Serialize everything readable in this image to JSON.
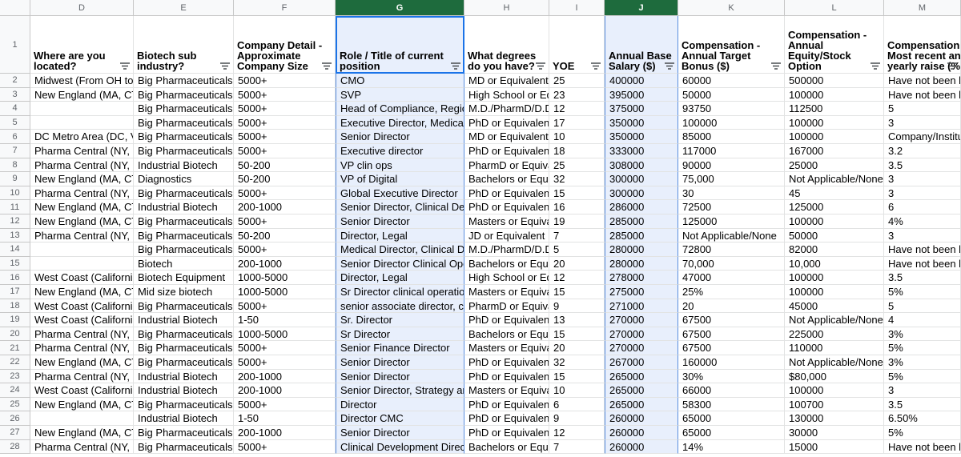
{
  "columns": [
    "D",
    "E",
    "F",
    "G",
    "H",
    "I",
    "J",
    "K",
    "L",
    "M"
  ],
  "row_numbers": [
    "1",
    "2",
    "3",
    "4",
    "5",
    "6",
    "7",
    "8",
    "9",
    "10",
    "11",
    "12",
    "13",
    "14",
    "15",
    "16",
    "17",
    "18",
    "19",
    "20",
    "21",
    "22",
    "23",
    "24",
    "25",
    "26",
    "27",
    "28"
  ],
  "headers": [
    [
      "Where are you",
      "located?"
    ],
    [
      "Biotech sub",
      "industry?"
    ],
    [
      "Company Detail -",
      "Approximate",
      "Company Size"
    ],
    [
      "Role / Title of current",
      "position"
    ],
    [
      "What degrees",
      "do you have?"
    ],
    [
      "YOE"
    ],
    [
      "Annual Base",
      "Salary ($)"
    ],
    [
      "Compensation -",
      "Annual Target",
      "Bonus ($)"
    ],
    [
      "Compensation -",
      "Annual",
      "Equity/Stock",
      "Option"
    ],
    [
      "Compensation",
      "Most recent an",
      "yearly raise (%)"
    ]
  ],
  "rows": [
    [
      "Midwest (From OH to KS",
      "Big Pharmaceuticals",
      "5000+",
      "CMO",
      "MD or Equivalent",
      "25",
      "400000",
      "60000",
      "500000",
      "Have not been lo"
    ],
    [
      "New England (MA, CT, R",
      "Big Pharmaceuticals",
      "5000+",
      "SVP",
      "High School or Equiv",
      "23",
      "395000",
      "50000",
      "100000",
      "Have not been lo"
    ],
    [
      null,
      "Big Pharmaceuticals",
      "5000+",
      "Head of Compliance, Regional",
      "M.D./PharmD/D.D.S.",
      "12",
      "375000",
      "93750",
      "112500",
      "5"
    ],
    [
      null,
      "Big Pharmaceuticals",
      "5000+",
      "Executive Director, Medical Affai",
      "PhD or Equivalent",
      "17",
      "350000",
      "100000",
      "100000",
      "3"
    ],
    [
      "DC Metro Area (DC, VA,",
      "Big Pharmaceuticals",
      "5000+",
      "Senior Director",
      "MD or Equivalent",
      "10",
      "350000",
      "85000",
      "100000",
      "Company/Institu"
    ],
    [
      "Pharma Central (NY, NJ,",
      "Big Pharmaceuticals",
      "5000+",
      "Executive director",
      "PhD or Equivalent",
      "18",
      "333000",
      "117000",
      "167000",
      "3.2"
    ],
    [
      "Pharma Central (NY, NJ,",
      "Industrial Biotech",
      "50-200",
      "VP clin ops",
      "PharmD or Equivaler",
      "25",
      "308000",
      "90000",
      "25000",
      "3.5"
    ],
    [
      "New England (MA, CT, R",
      "Diagnostics",
      "50-200",
      "VP of Digital",
      "Bachelors or Equival",
      "32",
      "300000",
      "75,000",
      "Not Applicable/None",
      "3"
    ],
    [
      "Pharma Central (NY, NJ,",
      "Big Pharmaceuticals",
      "5000+",
      "Global Executive Director",
      "PhD or Equivalent",
      "15",
      "300000",
      "30",
      "45",
      "3"
    ],
    [
      "New England (MA, CT, R",
      "Industrial Biotech",
      "200-1000",
      "Senior Director, Clinical Develop",
      "PhD or Equivalent",
      "16",
      "286000",
      "72500",
      "125000",
      "6"
    ],
    [
      "New England (MA, CT, R",
      "Big Pharmaceuticals",
      "5000+",
      "Senior Director",
      "Masters or Equivaler",
      "19",
      "285000",
      "125000",
      "100000",
      "4%"
    ],
    [
      "Pharma Central (NY, NJ,",
      "Big Pharmaceuticals",
      "50-200",
      "Director, Legal",
      "JD or Equivalent",
      "7",
      "285000",
      "Not Applicable/None",
      "50000",
      "3"
    ],
    [
      null,
      "Big Pharmaceuticals",
      "5000+",
      "Medical Director, Clinical Develo",
      "M.D./PharmD/D.D.S.",
      "5",
      "280000",
      "72800",
      "82000",
      "Have not been lo"
    ],
    [
      null,
      "Biotech",
      "200-1000",
      "Senior Director Clinical Operatio",
      "Bachelors or Equival",
      "20",
      "280000",
      "70,000",
      "10,000",
      "Have not been lo"
    ],
    [
      "West Coast (California &",
      "Biotech Equipment",
      "1000-5000",
      "Director, Legal",
      "High School or Equiv",
      "12",
      "278000",
      "47000",
      "100000",
      "3.5"
    ],
    [
      "New England (MA, CT, R",
      "Mid size biotech",
      "1000-5000",
      "Sr Director clinical operations",
      "Masters or Equivaler",
      "15",
      "275000",
      "25%",
      "100000",
      "5%"
    ],
    [
      "West Coast (California &",
      "Big Pharmaceuticals",
      "5000+",
      "senior associate director, clinical",
      "PharmD or Equivaler",
      "9",
      "271000",
      "20",
      "45000",
      "5"
    ],
    [
      "West Coast (California &",
      "Industrial Biotech",
      "1-50",
      "Sr. Director",
      "PhD or Equivalent",
      "13",
      "270000",
      "67500",
      "Not Applicable/None",
      "4"
    ],
    [
      "Pharma Central (NY, NJ,",
      "Big Pharmaceuticals",
      "1000-5000",
      "Sr Director",
      "Bachelors or Equival",
      "15",
      "270000",
      "67500",
      "225000",
      "3%"
    ],
    [
      "Pharma Central (NY, NJ,",
      "Big Pharmaceuticals",
      "5000+",
      "Senior Finance Director",
      "Masters or Equivaler",
      "20",
      "270000",
      "67500",
      "110000",
      "5%"
    ],
    [
      "New England (MA, CT, R",
      "Big Pharmaceuticals",
      "5000+",
      "Senior Director",
      "PhD or Equivalent",
      "32",
      "267000",
      "160000",
      "Not Applicable/None",
      "3%"
    ],
    [
      "Pharma Central (NY, NJ,",
      "Industrial Biotech",
      "200-1000",
      "Senior Director",
      "PhD or Equivalent",
      "15",
      "265000",
      "30%",
      "$80,000",
      "5%"
    ],
    [
      "West Coast (California &",
      "Industrial Biotech",
      "200-1000",
      "Senior Director, Strategy and Op",
      "Masters or Equivaler",
      "10",
      "265000",
      "66000",
      "100000",
      "3"
    ],
    [
      "New England (MA, CT, R",
      "Big Pharmaceuticals",
      "5000+",
      "Director",
      "PhD or Equivalent",
      "6",
      "265000",
      "58300",
      "100700",
      "3.5"
    ],
    [
      null,
      "Industrial Biotech",
      "1-50",
      "Director CMC",
      "PhD or Equivalent",
      "9",
      "260000",
      "65000",
      "130000",
      "6.50%"
    ],
    [
      "New England (MA, CT, R",
      "Big Pharmaceuticals",
      "200-1000",
      "Senior Director",
      "PhD or Equivalent",
      "12",
      "260000",
      "65000",
      "30000",
      "5%"
    ],
    [
      "Pharma Central (NY, NJ,",
      "Big Pharmaceuticals",
      "5000+",
      "Clinical Development Director",
      "Bachelors or Equival",
      "7",
      "260000",
      "14%",
      "15000",
      "Have not been lo"
    ]
  ]
}
